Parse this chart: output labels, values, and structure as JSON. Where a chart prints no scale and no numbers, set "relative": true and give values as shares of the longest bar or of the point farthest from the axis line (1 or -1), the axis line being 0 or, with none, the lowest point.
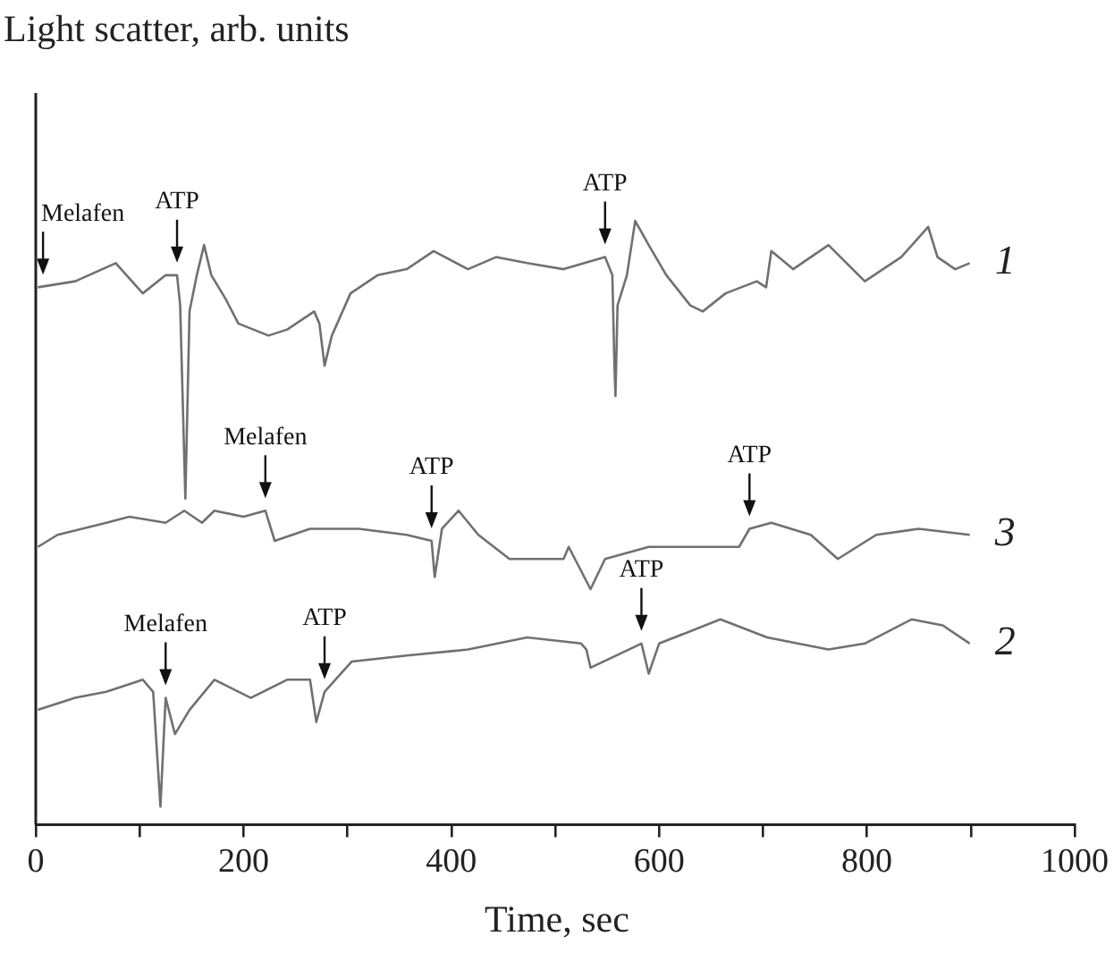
{
  "chart_data": {
    "type": "line",
    "ylabel": "Light scatter, arb. units",
    "xlabel": "Time, sec",
    "relative": true,
    "legend": false,
    "grid": false,
    "marker": "none",
    "line_style": "solid",
    "xlim": [
      0,
      1000
    ],
    "xticks": [
      0,
      {
        "value": 100,
        "label": null
      },
      200,
      {
        "value": 300,
        "label": null
      },
      400,
      {
        "value": 500,
        "label": null
      },
      600,
      {
        "value": 700,
        "label": null
      },
      800,
      {
        "value": 900,
        "label": null
      },
      1000
    ],
    "series": [
      {
        "name": "1",
        "color": "#707070",
        "x": [
          2,
          38,
          77,
          103,
          125,
          136,
          139,
          144,
          148,
          155,
          162,
          169,
          183,
          195,
          224,
          242,
          268,
          273,
          278,
          285,
          303,
          329,
          357,
          383,
          416,
          443,
          473,
          508,
          548,
          555,
          557,
          558,
          560,
          569,
          577,
          590,
          607,
          630,
          642,
          664,
          694,
          703,
          708,
          729,
          763,
          798,
          833,
          859,
          868,
          885,
          899
        ],
        "values": [
          0.89,
          0.9,
          0.93,
          0.88,
          0.91,
          0.91,
          0.86,
          0.54,
          0.85,
          0.91,
          0.96,
          0.91,
          0.87,
          0.83,
          0.81,
          0.82,
          0.85,
          0.83,
          0.76,
          0.81,
          0.88,
          0.91,
          0.92,
          0.95,
          0.92,
          0.94,
          0.93,
          0.92,
          0.94,
          0.91,
          0.76,
          0.71,
          0.86,
          0.91,
          1.0,
          0.96,
          0.91,
          0.86,
          0.85,
          0.88,
          0.9,
          0.89,
          0.95,
          0.92,
          0.96,
          0.9,
          0.94,
          0.99,
          0.94,
          0.92,
          0.93
        ]
      },
      {
        "name": "3",
        "color": "#707070",
        "x": [
          2,
          21,
          68,
          90,
          125,
          143,
          160,
          172,
          200,
          221,
          230,
          264,
          311,
          357,
          381,
          384,
          391,
          407,
          426,
          456,
          508,
          513,
          525,
          534,
          548,
          590,
          635,
          677,
          687,
          708,
          746,
          772,
          809,
          850,
          899
        ],
        "values": [
          0.46,
          0.48,
          0.5,
          0.51,
          0.5,
          0.52,
          0.5,
          0.52,
          0.51,
          0.52,
          0.47,
          0.49,
          0.49,
          0.48,
          0.47,
          0.41,
          0.49,
          0.52,
          0.48,
          0.44,
          0.44,
          0.46,
          0.42,
          0.39,
          0.44,
          0.46,
          0.46,
          0.46,
          0.49,
          0.5,
          0.48,
          0.44,
          0.48,
          0.49,
          0.48
        ]
      },
      {
        "name": "2",
        "color": "#707070",
        "x": [
          2,
          38,
          68,
          103,
          113,
          120,
          125,
          134,
          148,
          172,
          207,
          242,
          264,
          270,
          278,
          304,
          357,
          416,
          473,
          525,
          530,
          534,
          583,
          590,
          600,
          659,
          704,
          763,
          798,
          843,
          873,
          899
        ],
        "values": [
          0.19,
          0.21,
          0.22,
          0.24,
          0.22,
          0.03,
          0.21,
          0.15,
          0.19,
          0.24,
          0.21,
          0.24,
          0.24,
          0.17,
          0.22,
          0.27,
          0.28,
          0.29,
          0.31,
          0.3,
          0.29,
          0.26,
          0.3,
          0.25,
          0.3,
          0.34,
          0.31,
          0.29,
          0.3,
          0.34,
          0.33,
          0.3
        ]
      }
    ],
    "annotations": [
      {
        "text": "Melafen",
        "x": 7,
        "y": 0.89
      },
      {
        "text": "ATP",
        "x": 136,
        "y": 0.91
      },
      {
        "text": "ATP",
        "x": 548,
        "y": 0.94
      },
      {
        "text": "Melafen",
        "x": 221,
        "y": 0.52
      },
      {
        "text": "ATP",
        "x": 381,
        "y": 0.47
      },
      {
        "text": "ATP",
        "x": 687,
        "y": 0.49
      },
      {
        "text": "Melafen",
        "x": 125,
        "y": 0.21
      },
      {
        "text": "ATP",
        "x": 278,
        "y": 0.22
      },
      {
        "text": "ATP",
        "x": 583,
        "y": 0.3
      }
    ]
  }
}
